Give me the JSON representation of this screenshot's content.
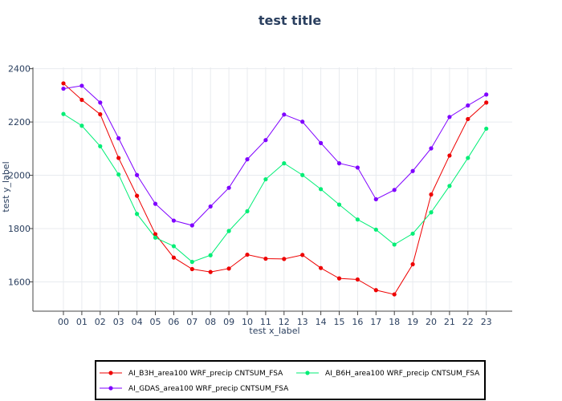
{
  "chart_data": {
    "type": "line",
    "title": "test title",
    "xlabel": "test x_label",
    "ylabel": "test y_label",
    "categories": [
      "00",
      "01",
      "02",
      "03",
      "04",
      "05",
      "06",
      "07",
      "08",
      "09",
      "10",
      "11",
      "12",
      "13",
      "14",
      "15",
      "16",
      "17",
      "18",
      "19",
      "20",
      "21",
      "22",
      "23"
    ],
    "yticks": [
      1600,
      1800,
      2000,
      2200,
      2400
    ],
    "ylim": [
      1490,
      2405
    ],
    "grid": true,
    "legend_position": "bottom",
    "series": [
      {
        "name": "AI_B3H_area100 WRF_precip CNTSUM_FSA",
        "color": "#ee0000",
        "values": [
          2345,
          2283,
          2229,
          2065,
          1923,
          1779,
          1691,
          1648,
          1637,
          1650,
          1702,
          1687,
          1686,
          1701,
          1652,
          1613,
          1609,
          1569,
          1553,
          1666,
          1928,
          2074,
          2211,
          2273
        ]
      },
      {
        "name": "AI_B6H_area100 WRF_precip CNTSUM_FSA",
        "color": "#00ee76",
        "values": [
          2230,
          2186,
          2109,
          2003,
          1855,
          1766,
          1734,
          1675,
          1700,
          1791,
          1865,
          1985,
          2045,
          2001,
          1948,
          1890,
          1834,
          1796,
          1740,
          1781,
          1861,
          1960,
          2065,
          2175
        ]
      },
      {
        "name": "AI_GDAS_area100 WRF_precip CNTSUM_FSA",
        "color": "#7f00ff",
        "values": [
          2325,
          2336,
          2273,
          2139,
          2001,
          1893,
          1830,
          1812,
          1883,
          1953,
          2060,
          2132,
          2228,
          2201,
          2121,
          2045,
          2029,
          1910,
          1945,
          2016,
          2101,
          2219,
          2262,
          2303
        ]
      }
    ]
  }
}
